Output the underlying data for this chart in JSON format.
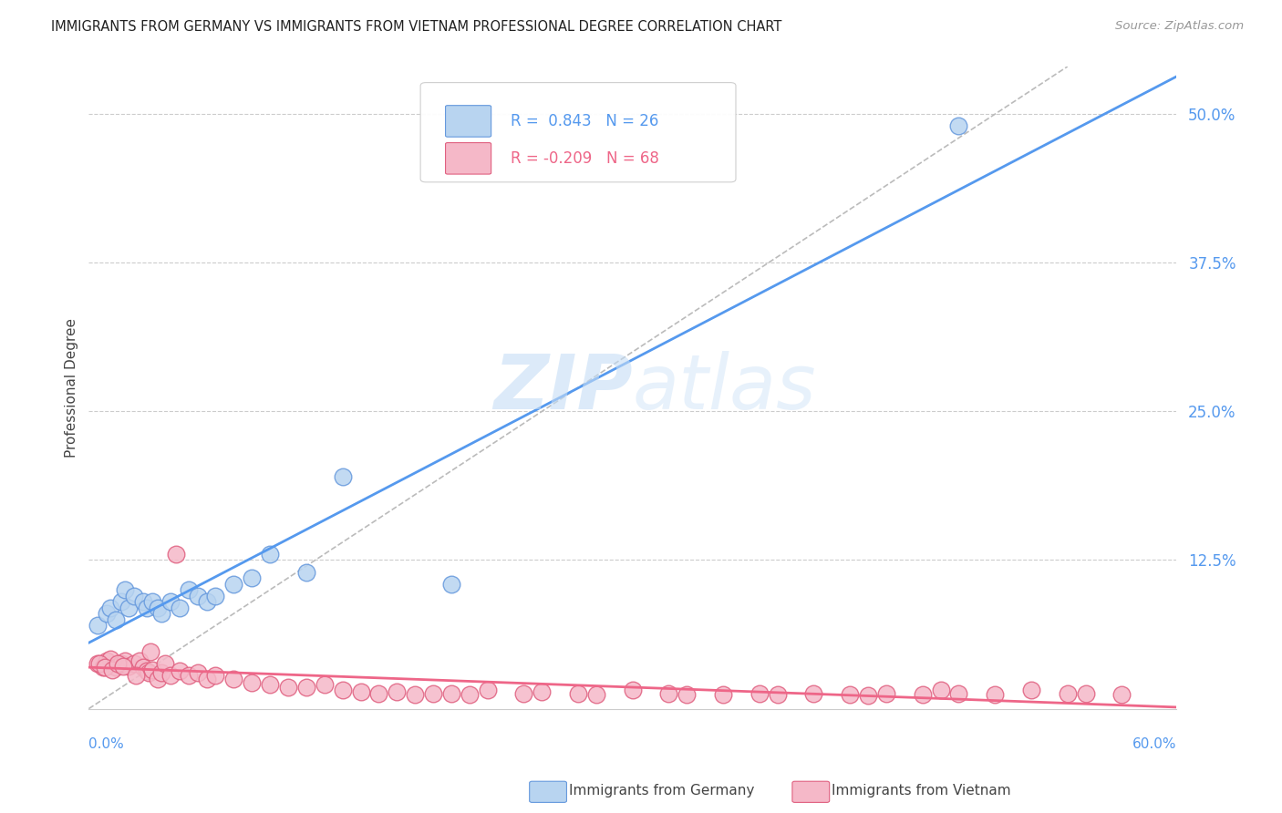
{
  "title": "IMMIGRANTS FROM GERMANY VS IMMIGRANTS FROM VIETNAM PROFESSIONAL DEGREE CORRELATION CHART",
  "source": "Source: ZipAtlas.com",
  "ylabel": "Professional Degree",
  "ytick_labels": [
    "12.5%",
    "25.0%",
    "37.5%",
    "50.0%"
  ],
  "ytick_values": [
    0.125,
    0.25,
    0.375,
    0.5
  ],
  "xlim": [
    0.0,
    0.6
  ],
  "ylim": [
    0.0,
    0.54
  ],
  "watermark_zip": "ZIP",
  "watermark_atlas": "atlas",
  "legend_r_germany": "0.843",
  "legend_n_germany": "26",
  "legend_r_vietnam": "-0.209",
  "legend_n_vietnam": "68",
  "color_germany_fill": "#b8d4f0",
  "color_germany_edge": "#6699dd",
  "color_vietnam_fill": "#f5b8c8",
  "color_vietnam_edge": "#e06080",
  "line_color_germany": "#5599ee",
  "line_color_vietnam": "#ee6688",
  "dashed_line_color": "#bbbbbb",
  "tick_color": "#5599ee",
  "background_color": "#ffffff",
  "grid_color": "#cccccc",
  "germany_x": [
    0.005,
    0.01,
    0.012,
    0.015,
    0.018,
    0.02,
    0.022,
    0.025,
    0.03,
    0.032,
    0.035,
    0.038,
    0.04,
    0.045,
    0.05,
    0.055,
    0.06,
    0.065,
    0.07,
    0.08,
    0.09,
    0.1,
    0.12,
    0.14,
    0.2,
    0.48
  ],
  "germany_y": [
    0.07,
    0.08,
    0.085,
    0.075,
    0.09,
    0.1,
    0.085,
    0.095,
    0.09,
    0.085,
    0.09,
    0.085,
    0.08,
    0.09,
    0.085,
    0.1,
    0.095,
    0.09,
    0.095,
    0.105,
    0.11,
    0.13,
    0.115,
    0.195,
    0.105,
    0.49
  ],
  "vietnam_x": [
    0.005,
    0.008,
    0.01,
    0.012,
    0.015,
    0.018,
    0.02,
    0.022,
    0.025,
    0.028,
    0.03,
    0.032,
    0.033,
    0.035,
    0.038,
    0.04,
    0.042,
    0.045,
    0.05,
    0.055,
    0.06,
    0.065,
    0.07,
    0.08,
    0.09,
    0.1,
    0.11,
    0.12,
    0.13,
    0.14,
    0.15,
    0.16,
    0.17,
    0.18,
    0.19,
    0.2,
    0.21,
    0.22,
    0.24,
    0.25,
    0.27,
    0.28,
    0.3,
    0.32,
    0.33,
    0.35,
    0.37,
    0.38,
    0.4,
    0.42,
    0.43,
    0.44,
    0.46,
    0.47,
    0.48,
    0.5,
    0.52,
    0.54,
    0.55,
    0.57,
    0.006,
    0.009,
    0.013,
    0.016,
    0.019,
    0.026,
    0.034,
    0.048
  ],
  "vietnam_y": [
    0.038,
    0.035,
    0.04,
    0.042,
    0.035,
    0.038,
    0.04,
    0.036,
    0.038,
    0.04,
    0.035,
    0.032,
    0.03,
    0.033,
    0.025,
    0.03,
    0.038,
    0.028,
    0.032,
    0.028,
    0.03,
    0.025,
    0.028,
    0.025,
    0.022,
    0.02,
    0.018,
    0.018,
    0.02,
    0.016,
    0.014,
    0.013,
    0.014,
    0.012,
    0.013,
    0.013,
    0.012,
    0.016,
    0.013,
    0.014,
    0.013,
    0.012,
    0.016,
    0.013,
    0.012,
    0.012,
    0.013,
    0.012,
    0.013,
    0.012,
    0.011,
    0.013,
    0.012,
    0.016,
    0.013,
    0.012,
    0.016,
    0.013,
    0.013,
    0.012,
    0.038,
    0.035,
    0.033,
    0.038,
    0.036,
    0.028,
    0.048,
    0.13
  ]
}
